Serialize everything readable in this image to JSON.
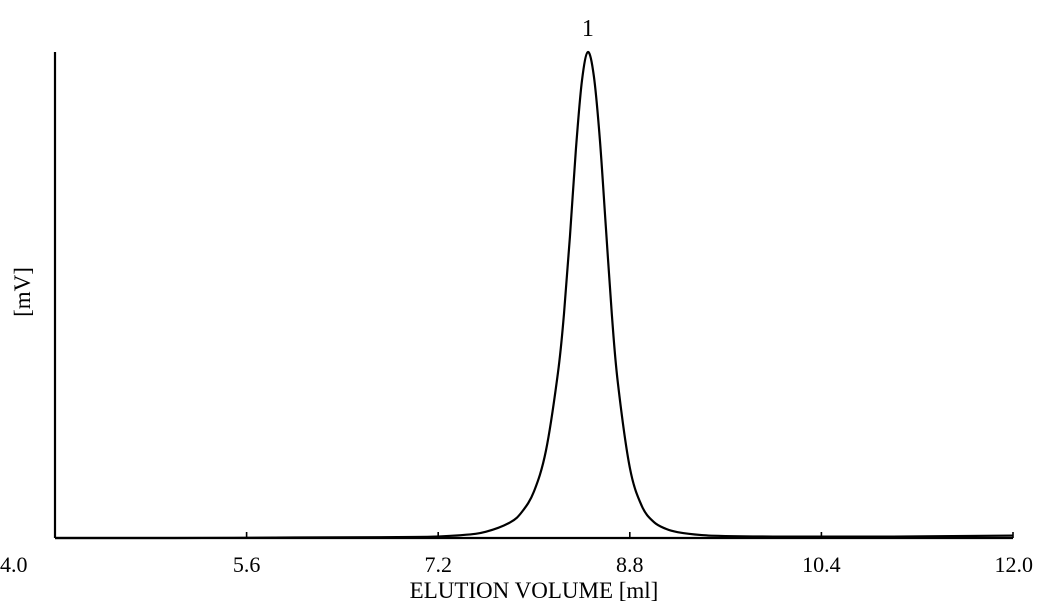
{
  "chart_data": {
    "type": "line",
    "title": "",
    "xlabel": "ELUTION VOLUME [ml]",
    "ylabel": "[mV]",
    "xlim": [
      4.0,
      12.0
    ],
    "ylim": [
      0,
      100
    ],
    "x_ticks": [
      "4.0",
      "5.6",
      "7.2",
      "8.8",
      "10.4",
      "12.0"
    ],
    "grid": false,
    "annotations": [
      {
        "text": "1",
        "x": 8.45,
        "y": 100
      }
    ],
    "series": [
      {
        "x": [
          4.0,
          5.0,
          6.0,
          7.0,
          7.4,
          7.6,
          7.8,
          7.9,
          8.0,
          8.1,
          8.2,
          8.25,
          8.3,
          8.35,
          8.4,
          8.45,
          8.5,
          8.55,
          8.6,
          8.65,
          8.7,
          8.8,
          8.9,
          9.0,
          9.1,
          9.2,
          9.4,
          9.6,
          10.0,
          11.0,
          12.0
        ],
        "values": [
          0.0,
          0.0,
          0.1,
          0.2,
          0.6,
          1.3,
          3.2,
          5.4,
          9.6,
          18.0,
          34.0,
          46.0,
          62.0,
          80.0,
          94.0,
          100.0,
          95.0,
          82.0,
          64.0,
          46.0,
          32.0,
          14.5,
          6.6,
          3.3,
          1.9,
          1.2,
          0.6,
          0.4,
          0.3,
          0.3,
          0.5
        ]
      }
    ]
  }
}
